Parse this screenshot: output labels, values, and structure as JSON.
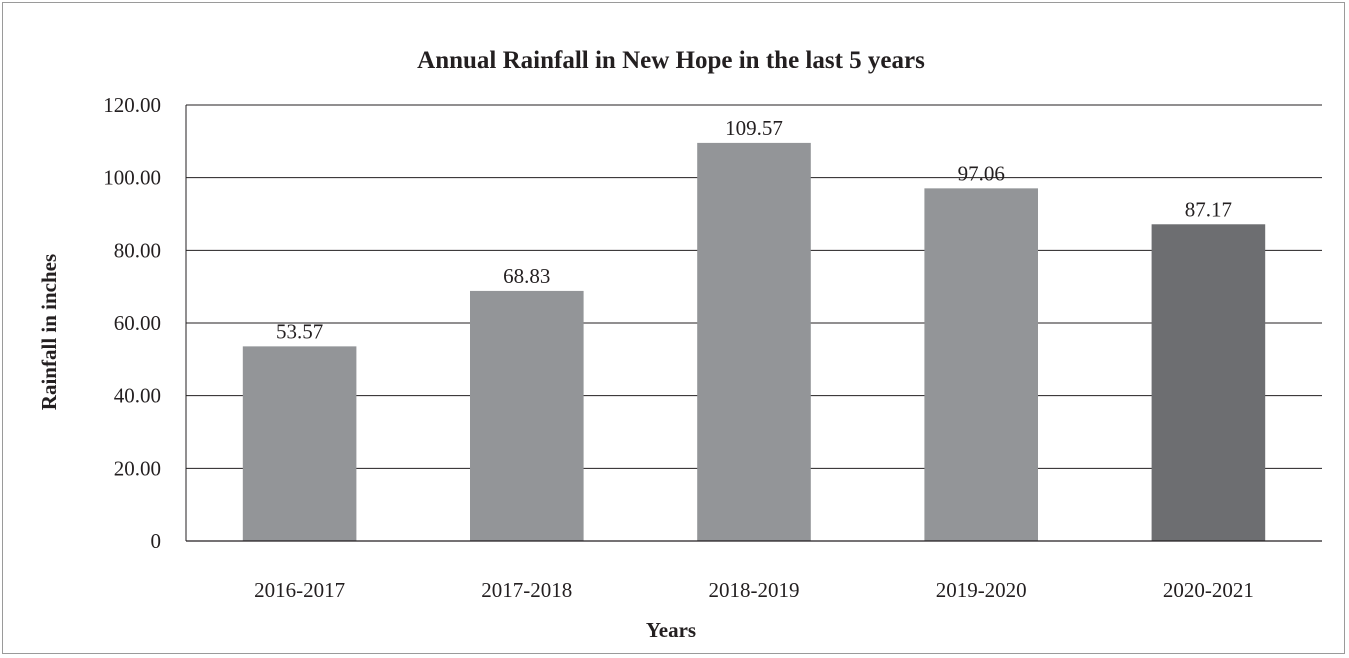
{
  "chart_data": {
    "type": "bar",
    "title": "Annual Rainfall in New Hope in the last 5 years",
    "xlabel": "Years",
    "ylabel": "Rainfall in inches",
    "categories": [
      "2016-2017",
      "2017-2018",
      "2018-2019",
      "2019-2020",
      "2020-2021"
    ],
    "values": [
      53.57,
      68.83,
      109.57,
      97.06,
      87.17
    ],
    "data_labels": [
      "53.57",
      "68.83",
      "109.57",
      "97.06",
      "87.17"
    ],
    "ylim": [
      0,
      120
    ],
    "yticks": [
      0,
      20,
      40,
      60,
      80,
      100,
      120
    ],
    "ytick_labels": [
      "0",
      "20.00",
      "40.00",
      "60.00",
      "80.00",
      "100.00",
      "120.00"
    ],
    "grid": true,
    "legend": "none",
    "colors": {
      "bar": "#939598",
      "highlight_bar": "#6d6e71",
      "highlight_index": 4,
      "gridline": "#231f20",
      "text": "#231f20"
    }
  }
}
